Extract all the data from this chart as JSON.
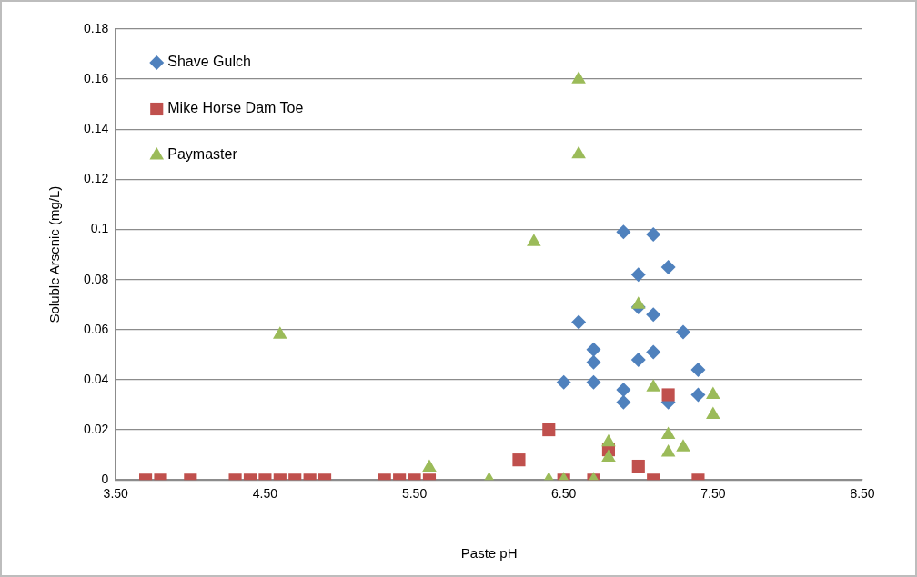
{
  "chart_data": {
    "type": "scatter",
    "xlabel": "Paste pH",
    "ylabel": "Soluble Arsenic (mg/L)",
    "xlim": [
      3.5,
      8.5
    ],
    "xticks": [
      {
        "value": 3.5,
        "label": "3.50"
      },
      {
        "value": 4.5,
        "label": "4.50"
      },
      {
        "value": 5.5,
        "label": "5.50"
      },
      {
        "value": 6.5,
        "label": "6.50"
      },
      {
        "value": 7.5,
        "label": "7.50"
      },
      {
        "value": 8.5,
        "label": "8.50"
      }
    ],
    "ylim": [
      0,
      0.18
    ],
    "yticks": [
      0,
      0.02,
      0.04,
      0.06,
      0.08,
      0.1,
      0.12,
      0.14,
      0.16,
      0.18
    ],
    "grid": "y",
    "legend": "top left",
    "series": [
      {
        "name": "Shave Gulch",
        "color": "#4f81bd",
        "marker": "diamond",
        "x": [
          6.9,
          7.1,
          7.2,
          7.0,
          7.0,
          7.1,
          6.6,
          7.3,
          6.7,
          7.1,
          7.0,
          6.7,
          7.4,
          6.5,
          6.7,
          6.9,
          6.9,
          7.4,
          7.2
        ],
        "values": [
          0.099,
          0.098,
          0.085,
          0.082,
          0.069,
          0.066,
          0.063,
          0.059,
          0.052,
          0.051,
          0.048,
          0.047,
          0.044,
          0.039,
          0.039,
          0.036,
          0.031,
          0.034,
          0.031
        ]
      },
      {
        "name": "Mike Horse Dam Toe",
        "color": "#c0504d",
        "marker": "square",
        "x": [
          3.7,
          3.8,
          4.0,
          4.3,
          4.4,
          4.5,
          4.6,
          4.7,
          4.8,
          4.9,
          5.3,
          5.4,
          5.5,
          5.6,
          6.2,
          6.4,
          6.5,
          6.8,
          6.7,
          7.0,
          7.1,
          7.2,
          7.4
        ],
        "values": [
          0,
          0,
          0,
          0,
          0,
          0,
          0,
          0,
          0,
          0,
          0,
          0,
          0,
          0,
          0.008,
          0.02,
          0,
          0.012,
          0,
          0.0055,
          0,
          0.034,
          0
        ]
      },
      {
        "name": "Paymaster",
        "color": "#9bbb59",
        "marker": "triangle",
        "x": [
          6.3,
          6.6,
          6.6,
          4.6,
          5.6,
          6.0,
          6.4,
          6.5,
          6.7,
          6.8,
          6.8,
          7.0,
          7.1,
          7.2,
          7.2,
          7.3,
          7.5,
          7.5
        ],
        "values": [
          0.095,
          0.16,
          0.13,
          0.058,
          0.005,
          0,
          0,
          0,
          0,
          0.015,
          0.009,
          0.07,
          0.037,
          0.018,
          0.011,
          0.013,
          0.034,
          0.026
        ]
      }
    ]
  }
}
